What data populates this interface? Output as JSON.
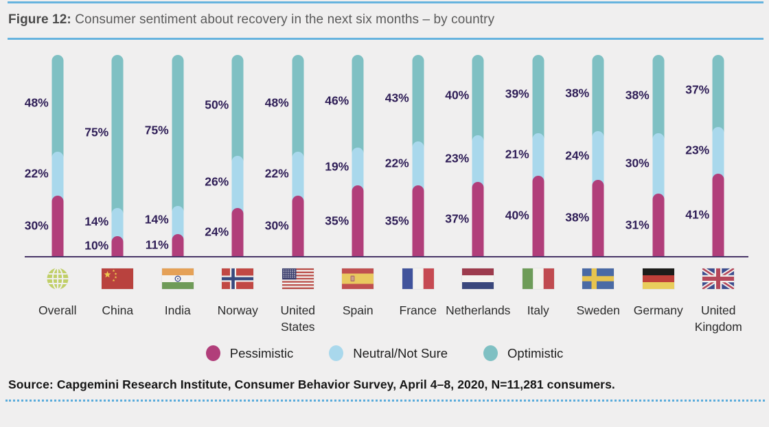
{
  "header": {
    "figure_label": "Figure 12:",
    "title": "Consumer sentiment about recovery in the next six months – by country"
  },
  "chart_data": {
    "type": "bar",
    "stacked": true,
    "orientation": "vertical",
    "title": "Consumer sentiment about recovery in the next six months – by country",
    "categories": [
      "Overall",
      "China",
      "India",
      "Norway",
      "United States",
      "Spain",
      "France",
      "Netherlands",
      "Italy",
      "Sweden",
      "Germany",
      "United Kingdom"
    ],
    "flags": [
      "globe",
      "china",
      "india",
      "norway",
      "usa",
      "spain",
      "france",
      "netherlands",
      "italy",
      "sweden",
      "germany",
      "uk"
    ],
    "series": [
      {
        "name": "Pessimistic",
        "color": "#b13e7a",
        "values": [
          30,
          10,
          11,
          24,
          30,
          35,
          35,
          37,
          40,
          38,
          31,
          41
        ]
      },
      {
        "name": "Neutral/Not Sure",
        "color": "#a9d8ec",
        "values": [
          22,
          14,
          14,
          26,
          22,
          19,
          22,
          23,
          21,
          24,
          30,
          23
        ]
      },
      {
        "name": "Optimistic",
        "color": "#7fc0c3",
        "values": [
          48,
          75,
          75,
          50,
          48,
          46,
          43,
          40,
          39,
          38,
          38,
          37
        ]
      }
    ],
    "value_suffix": "%",
    "ylim": [
      0,
      100
    ],
    "grid": false,
    "legend_position": "bottom",
    "label_color": "#2e1d56",
    "axis_color": "#473467"
  },
  "footer": {
    "source": "Source: Capgemini Research Institute, Consumer Behavior Survey, April 4–8, 2020, N=11,281 consumers."
  },
  "colors": {
    "background": "#f0efef",
    "rule_blue": "#66b3de",
    "dotted_blue": "#58abdb"
  }
}
